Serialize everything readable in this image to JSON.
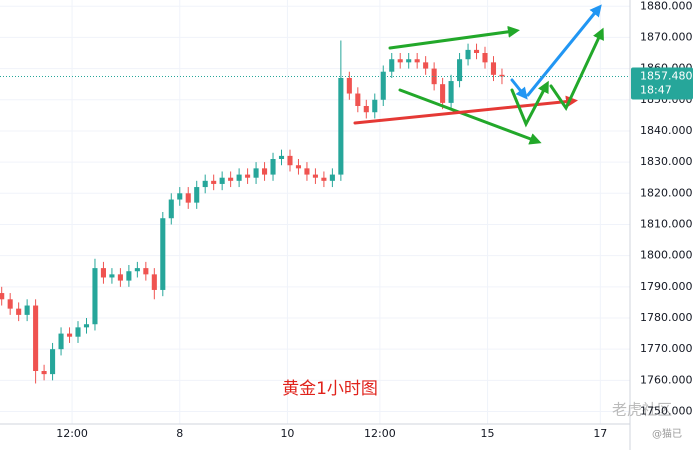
{
  "chart_data": {
    "type": "candlestick",
    "open": [
      1788,
      1786,
      1783,
      1781,
      1784,
      1763,
      1762,
      1770,
      1775,
      1774,
      1777,
      1778,
      1796,
      1793,
      1794,
      1792,
      1795,
      1796,
      1794,
      1789,
      1812,
      1818,
      1820,
      1817,
      1822,
      1824,
      1823,
      1825,
      1824,
      1826,
      1825,
      1828,
      1826,
      1831,
      1832,
      1829,
      1828,
      1826,
      1825,
      1824,
      1826,
      1857,
      1852,
      1848,
      1846,
      1850,
      1859,
      1863,
      1862,
      1863,
      1862,
      1860,
      1855,
      1849,
      1856,
      1863,
      1866,
      1865,
      1862,
      1858
    ],
    "high": [
      1790,
      1788,
      1785,
      1786,
      1786,
      1765,
      1772,
      1777,
      1777,
      1779,
      1780,
      1799,
      1798,
      1796,
      1796,
      1797,
      1798,
      1798,
      1796,
      1814,
      1820,
      1822,
      1822,
      1824,
      1826,
      1826,
      1827,
      1827,
      1828,
      1828,
      1830,
      1830,
      1833,
      1834,
      1834,
      1831,
      1830,
      1828,
      1827,
      1828,
      1869,
      1859,
      1854,
      1850,
      1852,
      1861,
      1865,
      1865,
      1865,
      1865,
      1864,
      1862,
      1857,
      1858,
      1865,
      1868,
      1868,
      1867,
      1864,
      1860
    ],
    "low": [
      1784,
      1781,
      1779,
      1779,
      1759,
      1760,
      1760,
      1768,
      1772,
      1772,
      1775,
      1776,
      1791,
      1791,
      1790,
      1790,
      1793,
      1792,
      1786,
      1787,
      1810,
      1816,
      1815,
      1815,
      1820,
      1821,
      1821,
      1822,
      1822,
      1823,
      1823,
      1824,
      1824,
      1829,
      1827,
      1826,
      1824,
      1823,
      1822,
      1822,
      1824,
      1850,
      1846,
      1844,
      1844,
      1848,
      1857,
      1860,
      1860,
      1860,
      1858,
      1853,
      1847,
      1847,
      1854,
      1861,
      1863,
      1860,
      1856,
      1855
    ],
    "close": [
      1786,
      1783,
      1781,
      1784,
      1763,
      1762,
      1770,
      1775,
      1774,
      1777,
      1778,
      1796,
      1793,
      1794,
      1792,
      1795,
      1796,
      1794,
      1789,
      1812,
      1818,
      1820,
      1817,
      1822,
      1824,
      1823,
      1825,
      1824,
      1826,
      1825,
      1828,
      1826,
      1831,
      1832,
      1829,
      1828,
      1826,
      1825,
      1824,
      1826,
      1857,
      1852,
      1848,
      1846,
      1850,
      1859,
      1863,
      1862,
      1863,
      1862,
      1860,
      1855,
      1849,
      1856,
      1863,
      1866,
      1865,
      1862,
      1858,
      1857.48
    ],
    "up_color": "#26a69a",
    "down_color": "#ef5350",
    "ylim": [
      1746,
      1882
    ],
    "yticks": [
      {
        "value": 1750,
        "label": "1750.000"
      },
      {
        "value": 1760,
        "label": "1760.000"
      },
      {
        "value": 1770,
        "label": "1770.000"
      },
      {
        "value": 1780,
        "label": "1780.000"
      },
      {
        "value": 1790,
        "label": "1790.000"
      },
      {
        "value": 1800,
        "label": "1800.000"
      },
      {
        "value": 1810,
        "label": "1810.000"
      },
      {
        "value": 1820,
        "label": "1820.000"
      },
      {
        "value": 1830,
        "label": "1830.000"
      },
      {
        "value": 1840,
        "label": "1840.000"
      },
      {
        "value": 1850,
        "label": "1850.000"
      },
      {
        "value": 1860,
        "label": "1860.000"
      },
      {
        "value": 1870,
        "label": "1870.000"
      },
      {
        "value": 1880,
        "label": "1880.000"
      }
    ],
    "xlim": [
      -0.2,
      74.1
    ],
    "xticks": [
      {
        "value": 8.3,
        "label": "12:00"
      },
      {
        "value": 21,
        "label": "8"
      },
      {
        "value": 33.7,
        "label": "10"
      },
      {
        "value": 44.6,
        "label": "12:00"
      },
      {
        "value": 57.3,
        "label": "15"
      },
      {
        "value": 70.6,
        "label": "17"
      }
    ],
    "grid": true,
    "last_price": {
      "value": 1857.48,
      "label": "1857.480"
    },
    "countdown": "18:47",
    "caption": "黄金1小时图",
    "watermark": "老虎社区",
    "author": "@猫已"
  }
}
